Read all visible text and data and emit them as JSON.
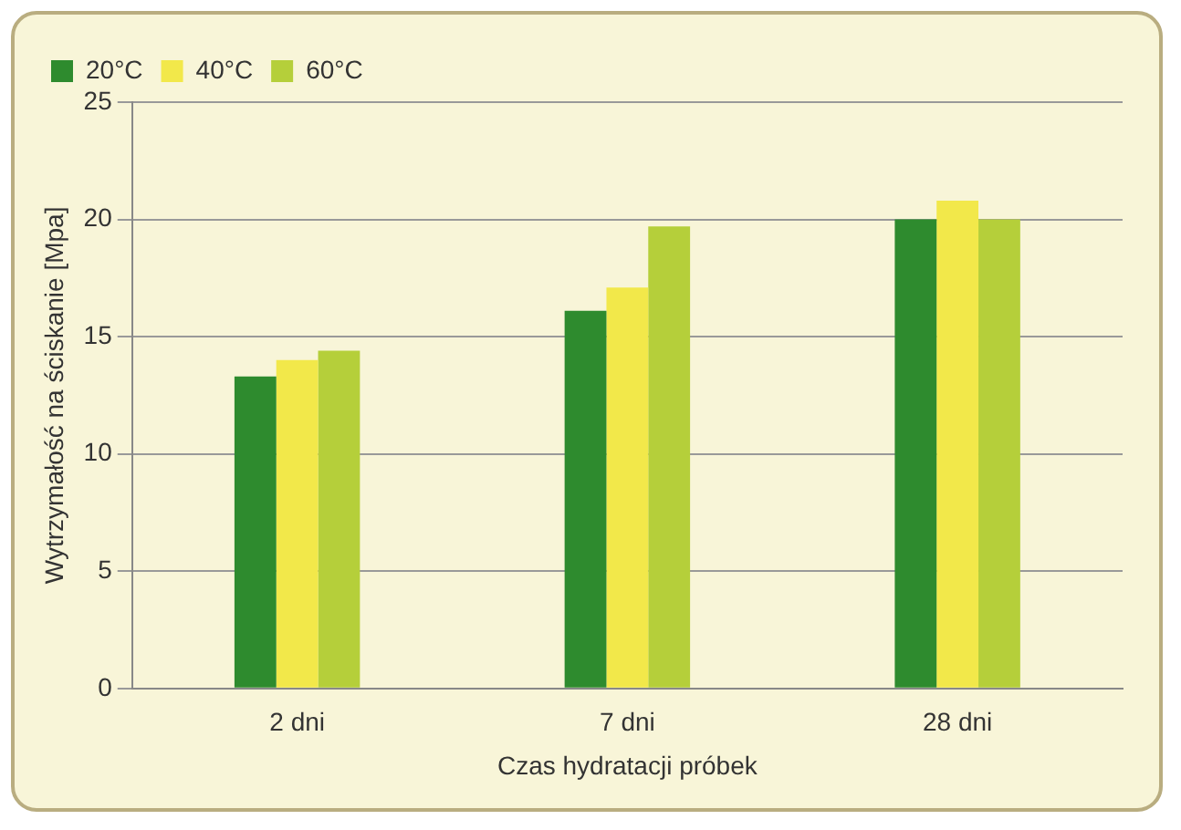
{
  "chart_data": {
    "type": "bar",
    "xlabel": "Czas hydratacji próbek",
    "ylabel": "Wytrzymałość na ściskanie [Mpa]",
    "categories": [
      "2 dni",
      "7 dni",
      "28 dni"
    ],
    "series": [
      {
        "name": "20°C",
        "color": "#2e8b2e",
        "values": [
          13.3,
          16.1,
          20.0
        ]
      },
      {
        "name": "40°C",
        "color": "#f2e84a",
        "values": [
          14.0,
          17.1,
          20.8
        ]
      },
      {
        "name": "60°C",
        "color": "#b5cf3a",
        "values": [
          14.4,
          19.7,
          20.0
        ]
      }
    ],
    "ylim": [
      0,
      25
    ],
    "yticks": [
      0,
      5,
      10,
      15,
      20,
      25
    ],
    "grid": "y",
    "legend": "top left"
  }
}
